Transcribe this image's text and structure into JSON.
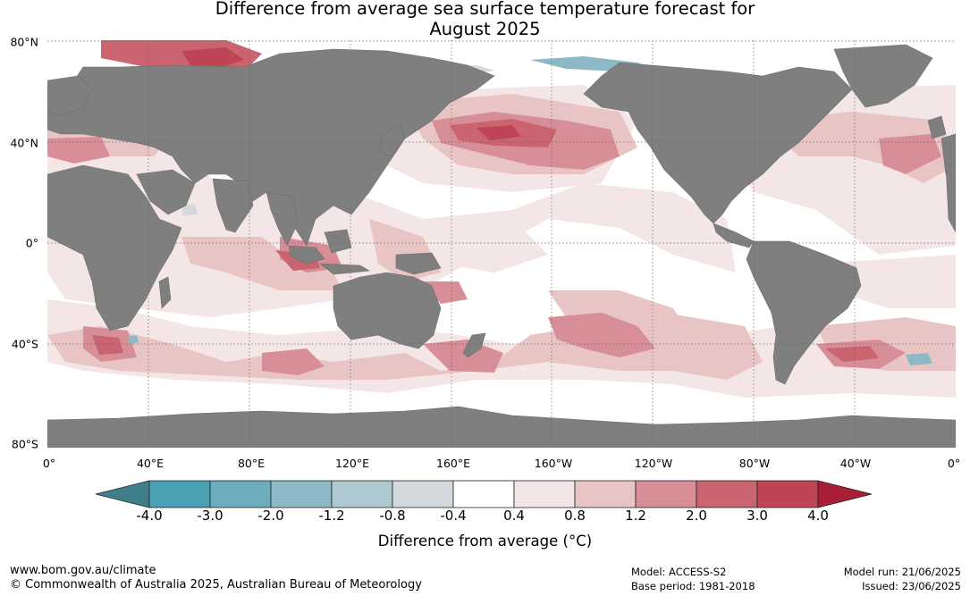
{
  "title_line1": "Difference from average sea surface temperature forecast for",
  "title_line2": "August 2025",
  "map": {
    "lat_labels": [
      "80°N",
      "40°N",
      "0°",
      "40°S",
      "80°S"
    ],
    "lon_labels": [
      "0°",
      "40°E",
      "80°E",
      "120°E",
      "160°E",
      "160°W",
      "120°W",
      "80°W",
      "40°W",
      "0°"
    ],
    "ocean_color": "#ffffff",
    "land_color": "#7f7f7f"
  },
  "colorbar": {
    "title": "Difference from average (°C)",
    "ticks": [
      "-4.0",
      "-3.0",
      "-2.0",
      "-1.2",
      "-0.8",
      "-0.4",
      "0.4",
      "0.8",
      "1.2",
      "2.0",
      "3.0",
      "4.0"
    ],
    "colors": [
      "#3f7f8c",
      "#4aa1b3",
      "#6cadbd",
      "#8db9c6",
      "#aec9cf",
      "#d3d9dc",
      "#ffffff",
      "#f4e6e6",
      "#e8c4c4",
      "#d88e97",
      "#c96470",
      "#be4555",
      "#a81e36"
    ]
  },
  "footer": {
    "website": "www.bom.gov.au/climate",
    "copyright": "© Commonwealth of Australia 2025, Australian Bureau of Meteorology",
    "model": "Model: ACCESS-S2",
    "base_period": "Base period: 1981-2018",
    "model_run": "Model run: 21/06/2025",
    "issued": "Issued: 23/06/2025"
  }
}
